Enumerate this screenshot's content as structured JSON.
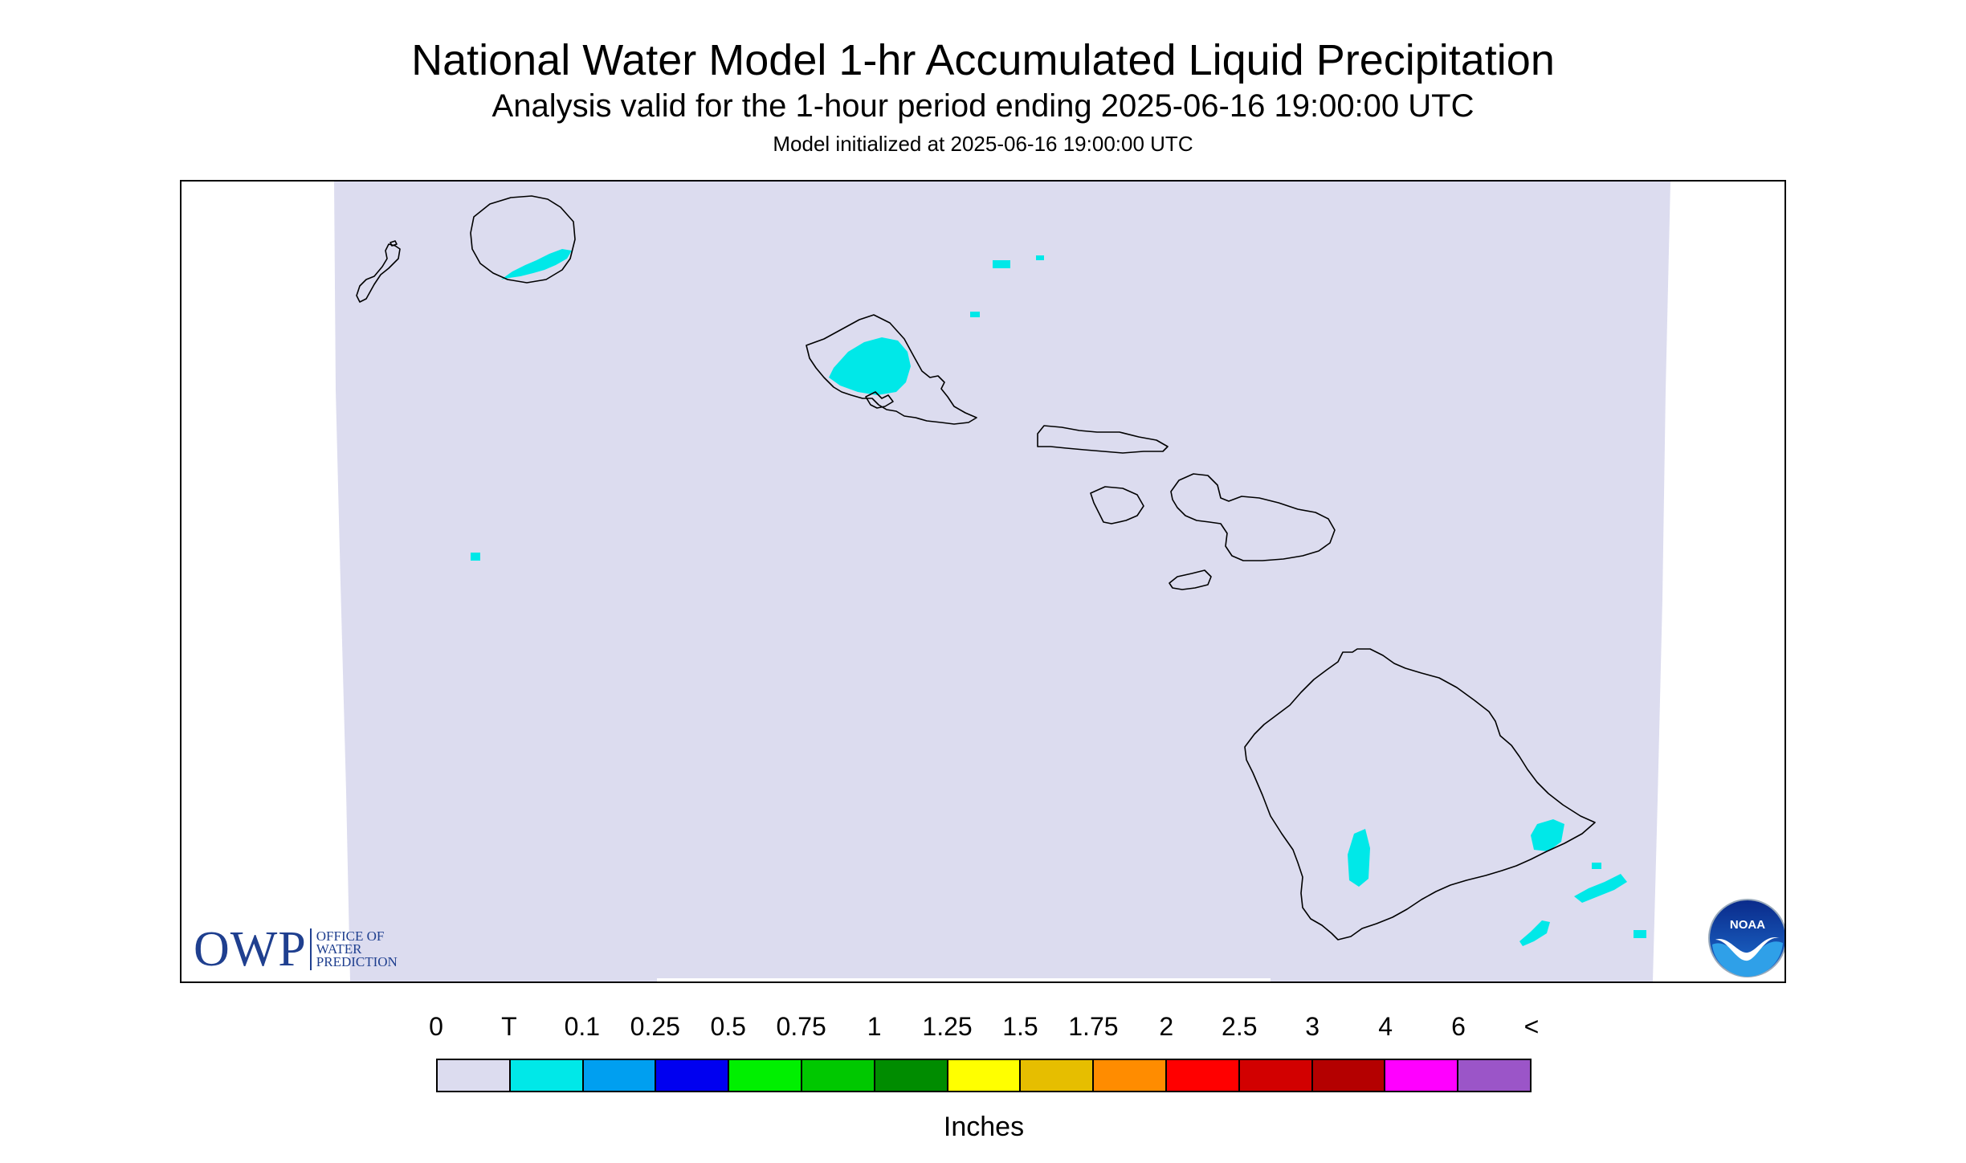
{
  "header": {
    "title": "National Water Model 1-hr Accumulated Liquid Precipitation",
    "subtitle": "Analysis valid for the 1-hour period ending 2025-06-16 19:00:00 UTC",
    "init_line": "Model initialized at 2025-06-16 19:00:00 UTC"
  },
  "map": {
    "region": "Hawaiian Islands",
    "background_color": "#dcdcef",
    "precip_color": "#00e8e8",
    "coastline_color": "#000000",
    "islands": [
      "Niihau",
      "Kauai",
      "Oahu",
      "Molokai",
      "Lanai",
      "Maui",
      "Kahoolawe",
      "Hawaii"
    ]
  },
  "logos": {
    "owp_mark": "OWP",
    "owp_words": [
      "OFFICE OF",
      "WATER",
      "PREDICTION"
    ],
    "noaa_text": "NOAA"
  },
  "legend": {
    "labels": [
      "0",
      "T",
      "0.1",
      "0.25",
      "0.5",
      "0.75",
      "1",
      "1.25",
      "1.5",
      "1.75",
      "2",
      "2.5",
      "3",
      "4",
      "6",
      "<"
    ],
    "colors": [
      "#dcdcef",
      "#00e8e8",
      "#009ff0",
      "#0000f0",
      "#00f000",
      "#00c800",
      "#008c00",
      "#ffff00",
      "#e6be00",
      "#ff8c00",
      "#ff0000",
      "#d20000",
      "#b40000",
      "#ff00ff",
      "#9b55c8"
    ],
    "unit": "Inches"
  }
}
